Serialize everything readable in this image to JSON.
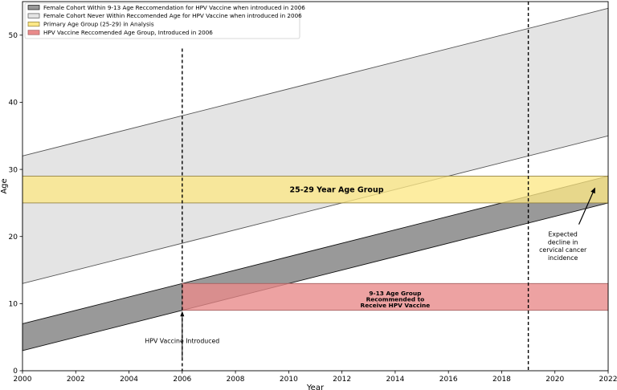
{
  "chart_data": {
    "type": "area",
    "title": "",
    "xlabel": "Year",
    "ylabel": "Age",
    "xlim": [
      2000,
      2022
    ],
    "ylim": [
      0,
      55
    ],
    "xticks": [
      2000,
      2002,
      2004,
      2006,
      2008,
      2010,
      2012,
      2014,
      2016,
      2018,
      2020,
      2022
    ],
    "yticks": [
      0,
      10,
      20,
      30,
      40,
      50
    ],
    "legend_position": "top-left",
    "series": [
      {
        "name": "Female Cohort Within 9-13 Age Reccomendation for HPV Vaccine when introduced in 2006",
        "kind": "diagonal-band",
        "x": [
          2000,
          2022
        ],
        "lower": [
          3,
          25
        ],
        "upper": [
          7,
          29
        ],
        "color": "#999999"
      },
      {
        "name": "Female Cohort Never Within Reccomended Age for HPV Vaccine when introduced in 2006",
        "kind": "diagonal-band",
        "x": [
          2000,
          2022
        ],
        "lower": [
          13,
          35
        ],
        "upper": [
          32,
          54
        ],
        "color": "#e4e4e4"
      },
      {
        "name": "Primary Age Group (25-29) in Analysis",
        "kind": "horizontal-band",
        "x": [
          2000,
          2022
        ],
        "lower": 25,
        "upper": 29,
        "color": "#fde886"
      },
      {
        "name": "HPV Vaccine Reccomended Age Group, Introduced in 2006",
        "kind": "horizontal-band",
        "x": [
          2006,
          2022
        ],
        "lower": 9,
        "upper": 13,
        "color": "#e98b8b"
      }
    ],
    "vlines": [
      {
        "x": 2006,
        "y_max": 48,
        "style": "dashed"
      },
      {
        "x": 2019,
        "y_max": 55,
        "style": "dashed"
      }
    ],
    "annotations": {
      "band_25_29": "25-29 Year Age Group",
      "band_9_13": [
        "9-13 Age Group",
        "Recommended to",
        "Receive HPV Vaccine"
      ],
      "vaccine_introduced": "HPV Vaccine Introduced",
      "expected_decline": [
        "Expected",
        "decline in",
        "cervical cancer",
        "incidence"
      ]
    },
    "colors": {
      "cohort_within": "#999999",
      "cohort_never": "#e4e4e4",
      "primary_group": "#fde886",
      "vaccine_group": "#e98b8b"
    }
  }
}
